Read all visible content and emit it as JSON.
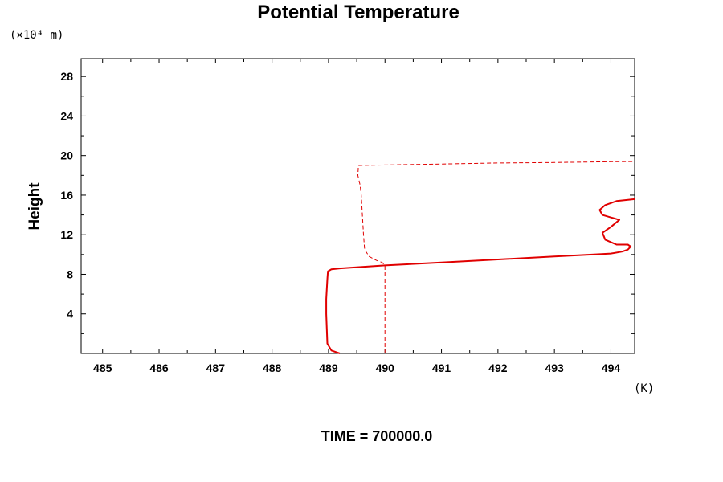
{
  "chart_data": {
    "type": "line",
    "title": "Potential Temperature",
    "ylabel": "Height",
    "y_unit_label": "(×10⁴ m)",
    "x_unit_label": "(K)",
    "footer": "TIME = 700000.0",
    "xlim": [
      484.62,
      494.42
    ],
    "ylim": [
      0,
      29.8
    ],
    "x_ticks": [
      "485",
      "486",
      "487",
      "488",
      "489",
      "490",
      "491",
      "492",
      "493",
      "494"
    ],
    "y_ticks": [
      "4",
      "8",
      "12",
      "16",
      "20",
      "24",
      "28"
    ],
    "grid": false,
    "colors": {
      "series": "#e00000",
      "axis": "#000000"
    },
    "series": [
      {
        "style": "solid",
        "x": [
          489.2,
          489.05,
          488.98,
          488.97,
          488.96,
          488.96,
          488.97,
          488.98,
          488.99,
          489.05,
          489.2,
          490.0,
          491.0,
          492.0,
          493.0,
          493.7,
          494.0,
          494.2,
          494.3,
          494.35,
          494.3,
          494.1,
          493.9,
          493.85,
          494.0,
          494.15,
          493.85,
          493.8,
          493.9,
          494.1,
          494.42
        ],
        "y": [
          0.0,
          0.3,
          1.0,
          2.5,
          4.0,
          5.5,
          6.5,
          7.5,
          8.3,
          8.5,
          8.6,
          8.9,
          9.2,
          9.5,
          9.8,
          10.0,
          10.1,
          10.3,
          10.5,
          10.8,
          11.0,
          11.0,
          11.5,
          12.2,
          12.8,
          13.5,
          14.0,
          14.5,
          15.0,
          15.4,
          15.6
        ]
      },
      {
        "style": "dashed",
        "x": [
          490.0,
          490.0,
          490.0,
          490.0,
          489.95,
          489.85,
          489.72,
          489.64,
          489.62,
          489.6,
          489.58,
          489.56,
          489.54,
          489.52,
          489.53,
          490.0,
          491.0,
          492.0,
          493.0,
          494.0,
          494.42
        ],
        "y": [
          0.0,
          3.0,
          6.0,
          8.9,
          9.2,
          9.4,
          9.8,
          10.5,
          12.0,
          14.0,
          16.0,
          17.0,
          17.5,
          18.0,
          19.0,
          19.05,
          19.15,
          19.25,
          19.3,
          19.38,
          19.4
        ]
      }
    ]
  }
}
